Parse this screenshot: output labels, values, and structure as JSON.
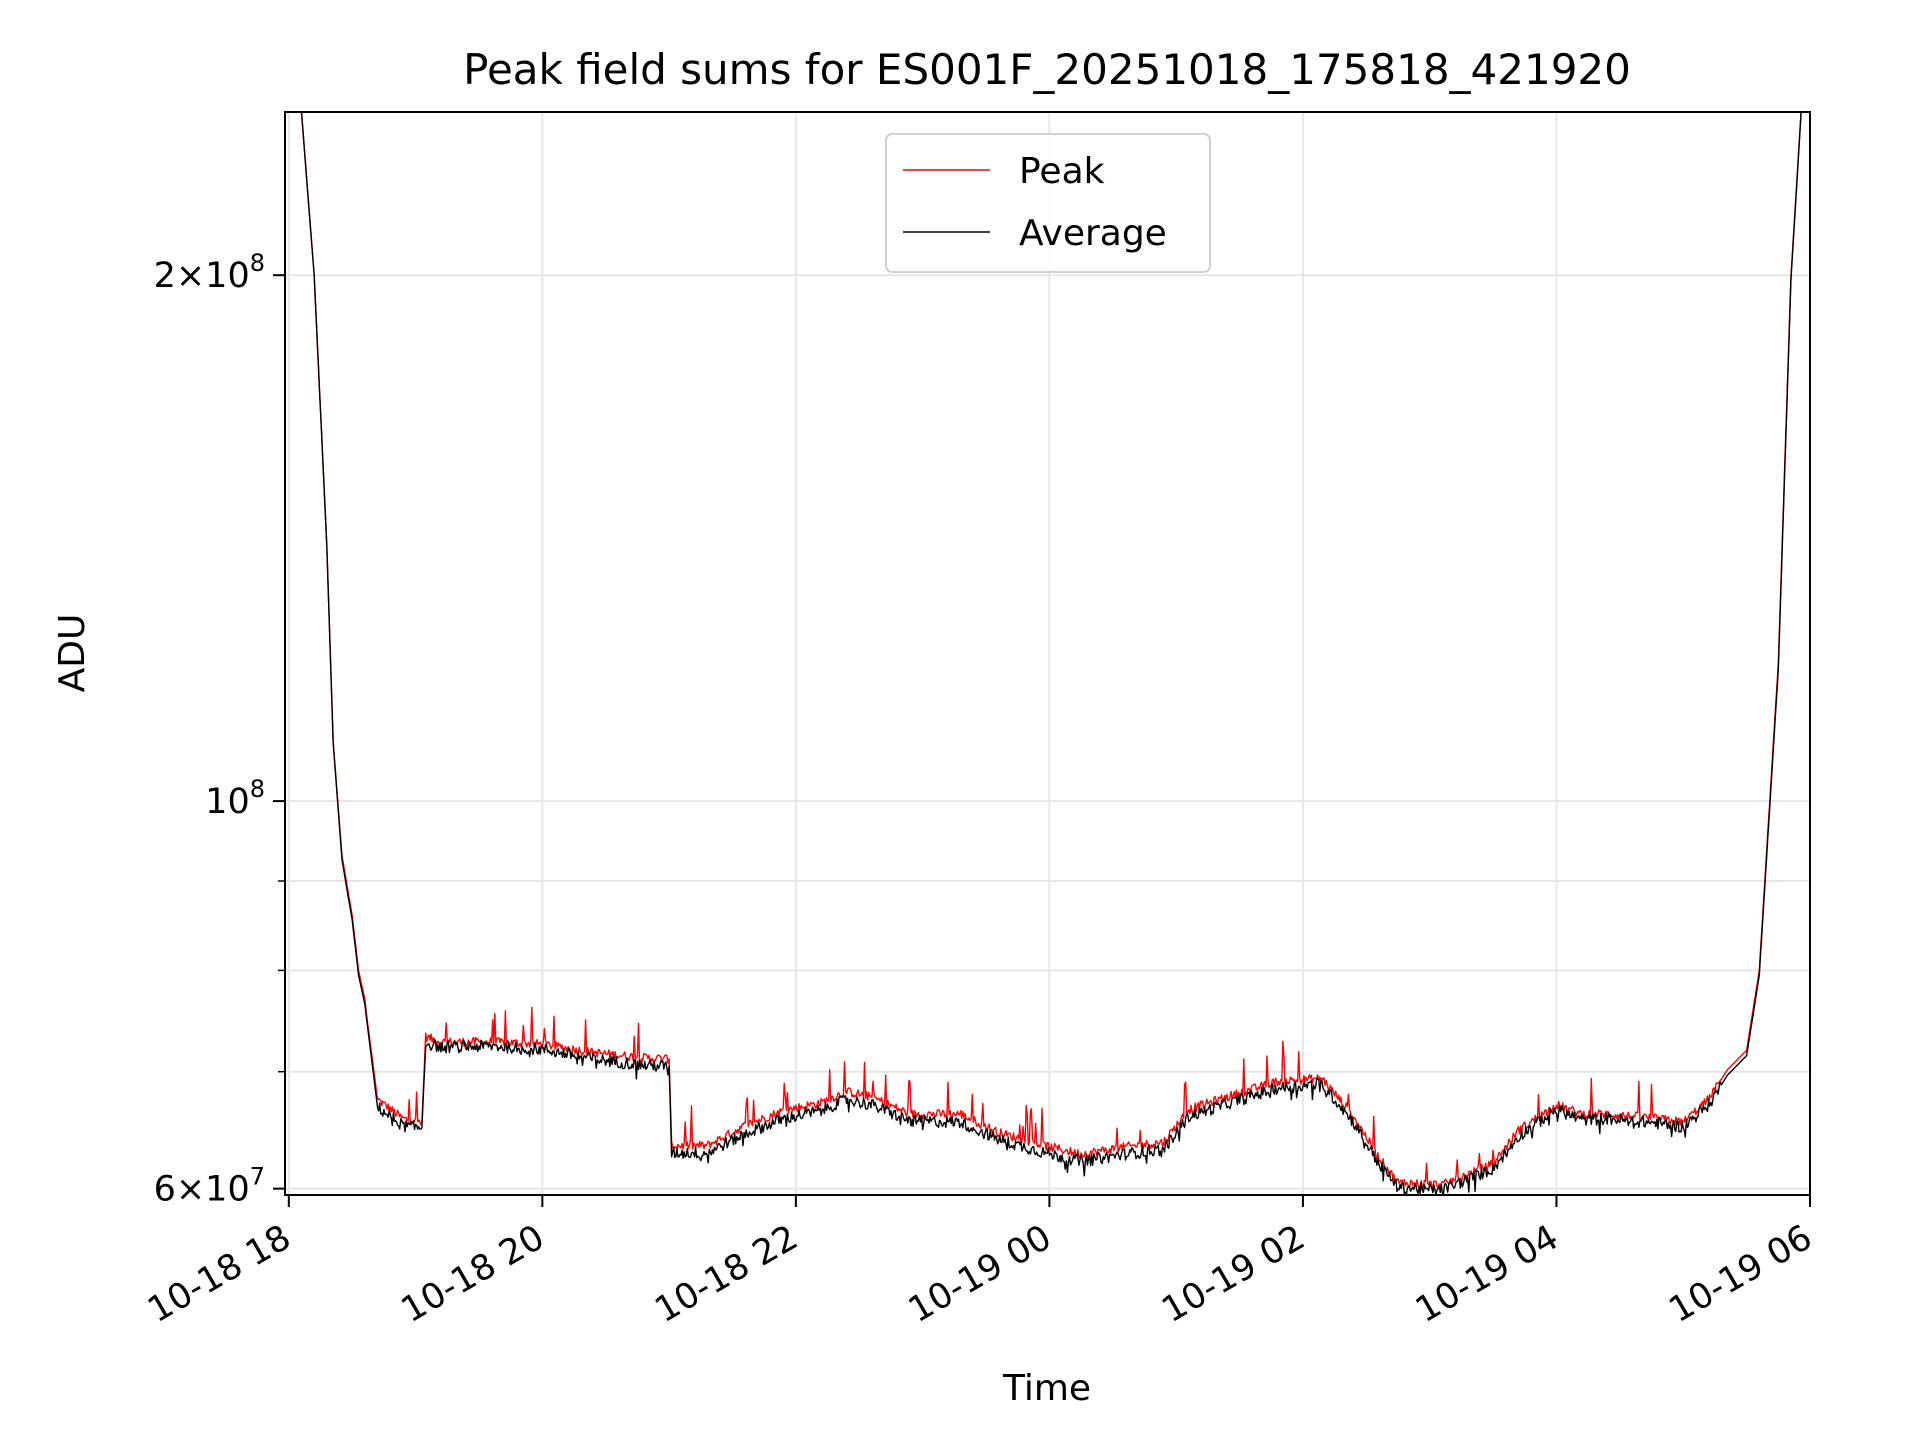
{
  "chart_data": {
    "type": "line",
    "title": "Peak field sums for ES001F_20251018_175818_421920",
    "xlabel": "Time",
    "ylabel": "ADU",
    "yscale": "log",
    "ylim": [
      59500000,
      248000000
    ],
    "xlim_hours": [
      17.97,
      30.0
    ],
    "grid": true,
    "legend_position": "upper center",
    "x_ticks": [
      {
        "h": 18,
        "label": "10-18 18"
      },
      {
        "h": 20,
        "label": "10-18 20"
      },
      {
        "h": 22,
        "label": "10-18 22"
      },
      {
        "h": 24,
        "label": "10-19 00"
      },
      {
        "h": 26,
        "label": "10-19 02"
      },
      {
        "h": 28,
        "label": "10-19 04"
      },
      {
        "h": 30,
        "label": "10-19 06"
      }
    ],
    "y_major_ticks": [
      {
        "value": 60000000,
        "mant": "6",
        "exp": "7"
      },
      {
        "value": 100000000,
        "mant": "",
        "exp": "8"
      },
      {
        "value": 200000000,
        "mant": "2",
        "exp": "8"
      }
    ],
    "y_minor_ticks": [
      70000000,
      80000000,
      90000000
    ],
    "series": [
      {
        "name": "Peak",
        "color": "#ff0000",
        "x_hours": [
          18.1,
          18.2,
          18.3,
          18.35,
          18.42,
          18.5,
          18.55,
          18.6,
          18.62,
          18.7,
          18.9,
          19.05,
          19.08,
          19.2,
          19.6,
          20.0,
          20.4,
          20.8,
          21.0,
          21.02,
          21.3,
          21.6,
          21.9,
          22.2,
          22.4,
          22.6,
          22.9,
          23.3,
          23.6,
          24.0,
          24.25,
          24.6,
          24.9,
          25.1,
          25.4,
          25.8,
          26.15,
          26.4,
          26.6,
          26.75,
          27.1,
          27.5,
          27.7,
          28.0,
          28.2,
          28.4,
          28.6,
          28.8,
          29.0,
          29.2,
          29.35,
          29.5,
          29.6,
          29.75,
          29.85,
          29.93
        ],
        "values": [
          248000000,
          200000000,
          140000000,
          108000000,
          93000000,
          86000000,
          80000000,
          77000000,
          74800000,
          67500000,
          65800000,
          65500000,
          73300000,
          72800000,
          72800000,
          72600000,
          71800000,
          71300000,
          71200000,
          63500000,
          63500000,
          65200000,
          66500000,
          67200000,
          68200000,
          67700000,
          66200000,
          66200000,
          64600000,
          63400000,
          62800000,
          63400000,
          63800000,
          66600000,
          67700000,
          69100000,
          69400000,
          66000000,
          62500000,
          60500000,
          60300000,
          62000000,
          64800000,
          67000000,
          66200000,
          66200000,
          66000000,
          65800000,
          65500000,
          67500000,
          70200000,
          72000000,
          80000000,
          120000000,
          200000000,
          248000000
        ]
      },
      {
        "name": "Average",
        "color": "#000000",
        "x_hours": [
          18.1,
          18.2,
          18.3,
          18.35,
          18.42,
          18.5,
          18.55,
          18.6,
          18.62,
          18.7,
          18.9,
          19.05,
          19.08,
          19.2,
          19.6,
          20.0,
          20.4,
          20.8,
          21.0,
          21.02,
          21.3,
          21.6,
          21.9,
          22.2,
          22.4,
          22.6,
          22.9,
          23.3,
          23.6,
          24.0,
          24.25,
          24.6,
          24.9,
          25.1,
          25.4,
          25.8,
          26.15,
          26.4,
          26.6,
          26.75,
          27.1,
          27.5,
          27.7,
          28.0,
          28.2,
          28.4,
          28.6,
          28.8,
          29.0,
          29.2,
          29.35,
          29.5,
          29.6,
          29.75,
          29.85,
          29.93
        ],
        "values": [
          248000000,
          200000000,
          140000000,
          108000000,
          92500000,
          85500000,
          79500000,
          76500000,
          74400000,
          66800000,
          65200000,
          65000000,
          72700000,
          72300000,
          72400000,
          72100000,
          71200000,
          70600000,
          70500000,
          62900000,
          62900000,
          64500000,
          65800000,
          66500000,
          67500000,
          67000000,
          65600000,
          65500000,
          64000000,
          62800000,
          62200000,
          62800000,
          63200000,
          66000000,
          67100000,
          68500000,
          68900000,
          65500000,
          62000000,
          60100000,
          59900000,
          61600000,
          64300000,
          66600000,
          65700000,
          65800000,
          65600000,
          65400000,
          65100000,
          67000000,
          69700000,
          71500000,
          79500000,
          119000000,
          199000000,
          248000000
        ]
      }
    ]
  }
}
